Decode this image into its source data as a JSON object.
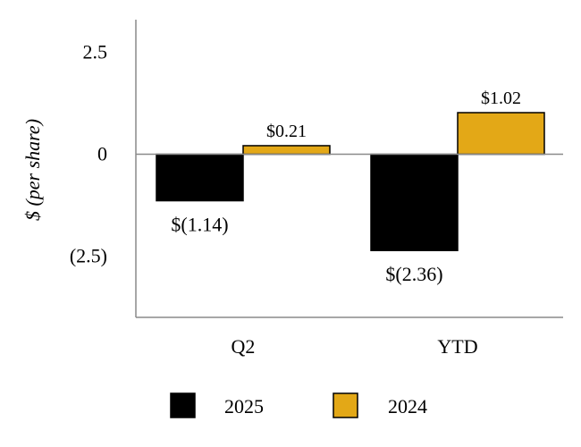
{
  "chart_data": {
    "type": "bar",
    "title": "",
    "xlabel": "",
    "ylabel": "$ (per share)",
    "ylim": [
      -4.0,
      3.3
    ],
    "yticks": [
      {
        "value": 2.5,
        "label": "2.5"
      },
      {
        "value": 0,
        "label": "0"
      },
      {
        "value": -2.5,
        "label": "(2.5)"
      }
    ],
    "categories": [
      "Q2",
      "YTD"
    ],
    "series": [
      {
        "name": "2025",
        "color": "#000000",
        "values": [
          -1.14,
          -2.36
        ],
        "labels": [
          "$(1.14)",
          "$(2.36)"
        ]
      },
      {
        "name": "2024",
        "color": "#E3A817",
        "values": [
          0.21,
          1.02
        ],
        "labels": [
          "$0.21",
          "$1.02"
        ]
      }
    ],
    "legend": {
      "position": "bottom",
      "items": [
        "2025",
        "2024"
      ]
    },
    "grid": false
  }
}
